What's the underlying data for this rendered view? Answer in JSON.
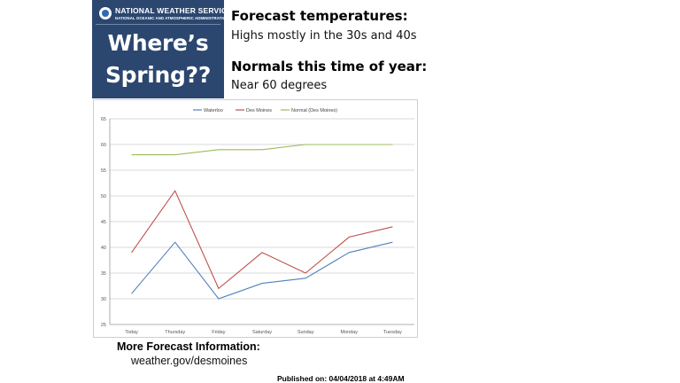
{
  "banner": {
    "agency_name": "NATIONAL WEATHER SERVICE",
    "agency_sub": "NATIONAL OCEANIC AND ATMOSPHERIC ADMINISTRATION",
    "headline_line1": "Where’s",
    "headline_line2": "Spring??"
  },
  "notes": {
    "forecast_title": "Forecast temperatures:",
    "forecast_text": "Highs mostly in the 30s and 40s",
    "normals_title": "Normals this time of year:",
    "normals_text": "Near 60 degrees"
  },
  "footer": {
    "more_title": "More Forecast Information:",
    "more_link": "weather.gov/desmoines",
    "published": "Published on: 04/04/2018 at 4:49AM"
  },
  "chart_data": {
    "type": "line",
    "categories": [
      "Today",
      "Thursday",
      "Friday",
      "Saturday",
      "Sunday",
      "Monday",
      "Tuesday"
    ],
    "series": [
      {
        "name": "Waterloo",
        "color": "#4f81bd",
        "values": [
          31,
          41,
          30,
          33,
          34,
          39,
          41
        ]
      },
      {
        "name": "Des Moines",
        "color": "#c0504d",
        "values": [
          39,
          51,
          32,
          39,
          35,
          42,
          44
        ]
      },
      {
        "name": "Normal (Des Moines)",
        "color": "#9bbb59",
        "values": [
          58,
          58,
          59,
          59,
          60,
          60,
          60
        ]
      }
    ],
    "ylim": [
      25,
      65
    ],
    "yticks": [
      25,
      30,
      35,
      40,
      45,
      50,
      55,
      60,
      65
    ],
    "grid": true,
    "legend": "top-center"
  }
}
